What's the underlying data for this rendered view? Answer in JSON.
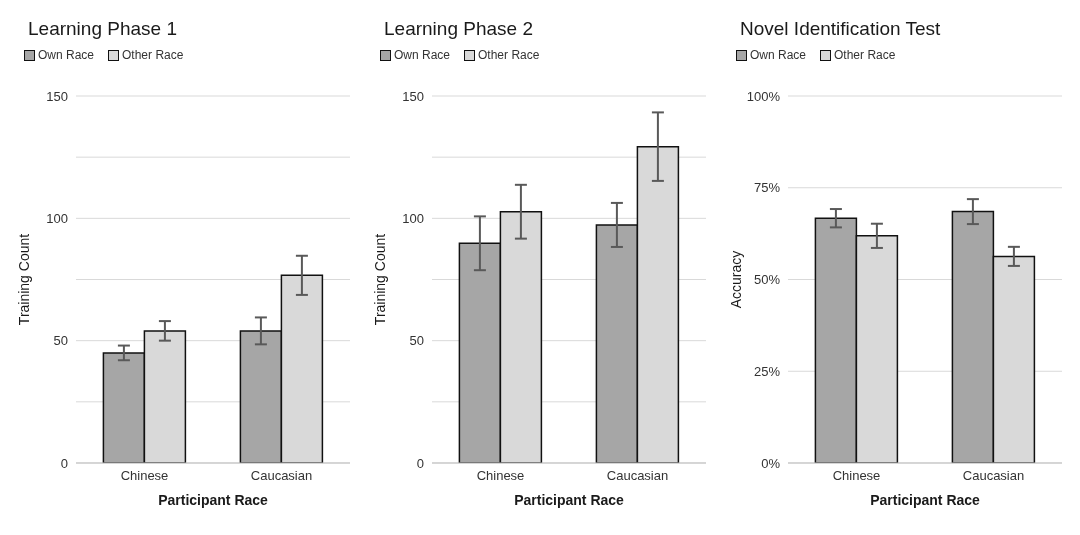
{
  "chart_data": [
    {
      "type": "bar",
      "title": "Learning Phase 1",
      "xlabel": "Participant Race",
      "ylabel": "Training Count",
      "categories": [
        "Chinese",
        "Caucasian"
      ],
      "series": [
        {
          "name": "Own Race",
          "color": "#a6a6a6",
          "values": [
            45,
            54
          ],
          "errors": [
            3,
            5.5
          ]
        },
        {
          "name": "Other Race",
          "color": "#d9d9d9",
          "values": [
            54,
            76.7
          ],
          "errors": [
            4,
            8
          ]
        }
      ],
      "ylim": [
        0,
        150
      ],
      "yticks": [
        0,
        {
          "value": 25,
          "label": null
        },
        50,
        {
          "value": 75,
          "label": null
        },
        100,
        {
          "value": 125,
          "label": null
        },
        150
      ],
      "grid": "y",
      "legend": "top left"
    },
    {
      "type": "bar",
      "title": "Learning Phase 2",
      "xlabel": "Participant Race",
      "ylabel": "Training Count",
      "categories": [
        "Chinese",
        "Caucasian"
      ],
      "series": [
        {
          "name": "Own Race",
          "color": "#a6a6a6",
          "values": [
            89.8,
            97.3
          ],
          "errors": [
            11,
            9
          ]
        },
        {
          "name": "Other Race",
          "color": "#d9d9d9",
          "values": [
            102.7,
            129.3
          ],
          "errors": [
            11,
            14
          ]
        }
      ],
      "ylim": [
        0,
        150
      ],
      "yticks": [
        0,
        {
          "value": 25,
          "label": null
        },
        50,
        {
          "value": 75,
          "label": null
        },
        100,
        {
          "value": 125,
          "label": null
        },
        150
      ],
      "grid": "y",
      "legend": "top left"
    },
    {
      "type": "bar",
      "title": "Novel Identification Test",
      "xlabel": "Participant Race",
      "ylabel": "Accuracy",
      "categories": [
        "Chinese",
        "Caucasian"
      ],
      "series": [
        {
          "name": "Own Race",
          "color": "#a6a6a6",
          "values": [
            66.7,
            68.5
          ],
          "errors": [
            2.5,
            3.4
          ]
        },
        {
          "name": "Other Race",
          "color": "#d9d9d9",
          "values": [
            61.9,
            56.3
          ],
          "errors": [
            3.3,
            2.6
          ]
        }
      ],
      "ylim": [
        0,
        100
      ],
      "yticks": [
        {
          "value": 0,
          "label": "0%"
        },
        {
          "value": 25,
          "label": "25%"
        },
        {
          "value": 50,
          "label": "50%"
        },
        {
          "value": 75,
          "label": "75%"
        },
        {
          "value": 100,
          "label": "100%"
        }
      ],
      "grid": "y",
      "legend": "top left"
    }
  ]
}
